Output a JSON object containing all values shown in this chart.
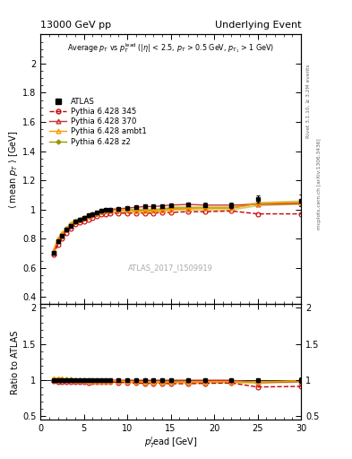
{
  "title_left": "13000 GeV pp",
  "title_right": "Underlying Event",
  "watermark": "ATLAS_2017_I1509919",
  "right_label_top": "Rivet 3.1.10, ≥ 3.2M events",
  "right_label_bottom": "mcplots.cern.ch [arXiv:1306.3436]",
  "ylabel_main": "⟨ mean p_T ⟩ [GeV]",
  "ylabel_ratio": "Ratio to ATLAS",
  "xlabel": "p_T^lead [GeV]",
  "ylim_main": [
    0.35,
    2.2
  ],
  "ylim_ratio": [
    0.45,
    2.05
  ],
  "xlim": [
    0,
    30
  ],
  "yticks_main": [
    0.4,
    0.6,
    0.8,
    1.0,
    1.2,
    1.4,
    1.6,
    1.8,
    2.0
  ],
  "yticks_ratio": [
    0.5,
    1.0,
    1.5,
    2.0
  ],
  "xticks": [
    0,
    5,
    10,
    15,
    20,
    25,
    30
  ],
  "atlas_x": [
    1.5,
    2.0,
    2.5,
    3.0,
    3.5,
    4.0,
    4.5,
    5.0,
    5.5,
    6.0,
    6.5,
    7.0,
    7.5,
    8.0,
    9.0,
    10.0,
    11.0,
    12.0,
    13.0,
    14.0,
    15.0,
    17.0,
    19.0,
    22.0,
    25.0,
    30.0
  ],
  "atlas_y": [
    0.7,
    0.78,
    0.82,
    0.86,
    0.89,
    0.92,
    0.93,
    0.94,
    0.96,
    0.97,
    0.98,
    0.99,
    0.995,
    1.0,
    1.005,
    1.01,
    1.015,
    1.02,
    1.02,
    1.025,
    1.03,
    1.035,
    1.03,
    1.03,
    1.07,
    1.06
  ],
  "atlas_yerr": [
    0.01,
    0.01,
    0.01,
    0.01,
    0.01,
    0.01,
    0.01,
    0.01,
    0.01,
    0.01,
    0.01,
    0.01,
    0.01,
    0.01,
    0.01,
    0.01,
    0.01,
    0.01,
    0.01,
    0.01,
    0.01,
    0.015,
    0.015,
    0.02,
    0.025,
    0.04
  ],
  "py345_x": [
    1.5,
    2.0,
    2.5,
    3.0,
    3.5,
    4.0,
    4.5,
    5.0,
    5.5,
    6.0,
    6.5,
    7.0,
    7.5,
    8.0,
    9.0,
    10.0,
    11.0,
    12.0,
    13.0,
    14.0,
    15.0,
    17.0,
    19.0,
    22.0,
    25.0,
    30.0
  ],
  "py345_y": [
    0.69,
    0.76,
    0.8,
    0.84,
    0.87,
    0.9,
    0.91,
    0.92,
    0.93,
    0.945,
    0.955,
    0.965,
    0.97,
    0.975,
    0.975,
    0.975,
    0.975,
    0.975,
    0.975,
    0.98,
    0.98,
    0.985,
    0.985,
    0.99,
    0.97,
    0.97
  ],
  "py345_color": "#cc0000",
  "py345_label": "Pythia 6.428 345",
  "py370_x": [
    1.5,
    2.0,
    2.5,
    3.0,
    3.5,
    4.0,
    4.5,
    5.0,
    5.5,
    6.0,
    6.5,
    7.0,
    7.5,
    8.0,
    9.0,
    10.0,
    11.0,
    12.0,
    13.0,
    14.0,
    15.0,
    17.0,
    19.0,
    22.0,
    25.0,
    30.0
  ],
  "py370_y": [
    0.7,
    0.78,
    0.82,
    0.86,
    0.89,
    0.92,
    0.93,
    0.94,
    0.96,
    0.97,
    0.98,
    0.99,
    0.995,
    1.0,
    1.005,
    1.01,
    1.015,
    1.02,
    1.02,
    1.025,
    1.03,
    1.035,
    1.03,
    1.03,
    1.035,
    1.04
  ],
  "py370_color": "#cc3333",
  "py370_label": "Pythia 6.428 370",
  "pyambt1_x": [
    1.5,
    2.0,
    2.5,
    3.0,
    3.5,
    4.0,
    4.5,
    5.0,
    5.5,
    6.0,
    6.5,
    7.0,
    7.5,
    8.0,
    9.0,
    10.0,
    11.0,
    12.0,
    13.0,
    14.0,
    15.0,
    17.0,
    19.0,
    22.0,
    25.0,
    30.0
  ],
  "pyambt1_y": [
    0.72,
    0.8,
    0.84,
    0.87,
    0.9,
    0.92,
    0.93,
    0.94,
    0.955,
    0.965,
    0.975,
    0.985,
    0.99,
    0.995,
    0.995,
    0.995,
    0.99,
    0.99,
    0.99,
    0.995,
    1.0,
    1.005,
    1.01,
    1.01,
    1.04,
    1.05
  ],
  "pyambt1_color": "#ff9900",
  "pyambt1_label": "Pythia 6.428 ambt1",
  "pyz2_x": [
    1.5,
    2.0,
    2.5,
    3.0,
    3.5,
    4.0,
    4.5,
    5.0,
    5.5,
    6.0,
    6.5,
    7.0,
    7.5,
    8.0,
    9.0,
    10.0,
    11.0,
    12.0,
    13.0,
    14.0,
    15.0,
    17.0,
    19.0,
    22.0,
    25.0,
    30.0
  ],
  "pyz2_y": [
    0.71,
    0.79,
    0.83,
    0.87,
    0.9,
    0.92,
    0.93,
    0.945,
    0.955,
    0.965,
    0.975,
    0.985,
    0.99,
    0.995,
    0.995,
    0.995,
    0.995,
    0.995,
    0.995,
    1.0,
    1.01,
    1.01,
    1.01,
    1.01,
    1.04,
    1.05
  ],
  "pyz2_color": "#999900",
  "pyz2_band_color": "#aaaa00",
  "pyz2_label": "Pythia 6.428 z2",
  "atlas_color": "black",
  "atlas_label": "ATLAS",
  "bg_color": "#ffffff",
  "plot_bg": "white"
}
